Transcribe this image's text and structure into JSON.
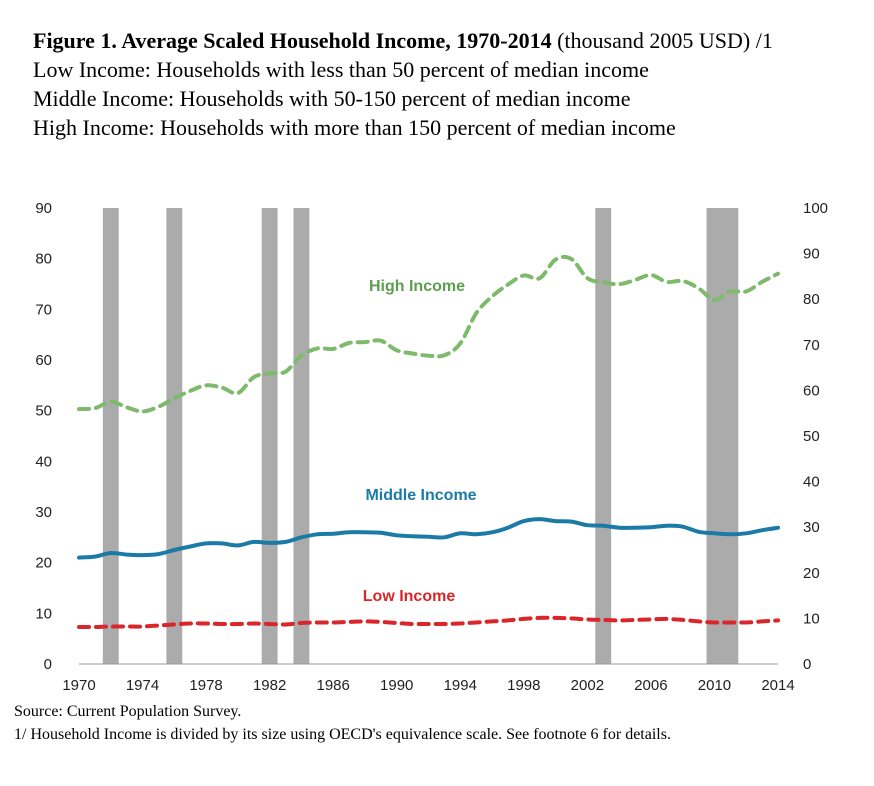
{
  "header": {
    "title_bold": "Figure 1. Average Scaled Household Income, 1970-2014",
    "title_rest": " (thousand 2005 USD) /1",
    "lines": [
      "Low Income: Households with less than 50 percent of median income",
      "Middle Income: Households with 50-150 percent of median income",
      "High Income: Households with more than 150 percent of median income"
    ]
  },
  "footer": {
    "source": "Source: Current Population Survey.",
    "note": "1/ Household Income is divided by its size using OECD's equivalence scale. See footnote 6 for details."
  },
  "chart_data": {
    "type": "line",
    "x_ticks": [
      "1970",
      "1974",
      "1978",
      "1982",
      "1986",
      "1990",
      "1994",
      "1998",
      "2002",
      "2006",
      "2010",
      "2014"
    ],
    "xlim": [
      1970,
      2014
    ],
    "ylim_left": [
      0,
      90
    ],
    "yticks_left": [
      "0",
      "10",
      "20",
      "30",
      "40",
      "50",
      "60",
      "70",
      "80",
      "90"
    ],
    "ylim_right": [
      0,
      100
    ],
    "yticks_right": [
      "0",
      "10",
      "20",
      "30",
      "40",
      "50",
      "60",
      "70",
      "80",
      "90",
      "100"
    ],
    "recession_bands": [
      [
        1971.5,
        1972.5
      ],
      [
        1975.5,
        1976.5
      ],
      [
        1981.5,
        1982.5
      ],
      [
        1983.5,
        1984.5
      ],
      [
        2002.5,
        2003.5
      ],
      [
        2009.5,
        2011.5
      ]
    ],
    "series": [
      {
        "name": "High Income",
        "axis": "right",
        "style": "dashed",
        "color": "#7dba6c",
        "label_color": "#5d9e4f",
        "x": [
          1970,
          1971,
          1972,
          1973,
          1974,
          1975,
          1976,
          1977,
          1978,
          1979,
          1980,
          1981,
          1982,
          1983,
          1984,
          1985,
          1986,
          1987,
          1988,
          1989,
          1990,
          1991,
          1992,
          1993,
          1994,
          1995,
          1996,
          1997,
          1998,
          1999,
          2000,
          2001,
          2002,
          2003,
          2004,
          2005,
          2006,
          2007,
          2008,
          2009,
          2010,
          2011,
          2012,
          2013,
          2014
        ],
        "values": [
          55.9,
          56.1,
          57.5,
          56.3,
          55.4,
          56.4,
          58.3,
          59.9,
          61.1,
          60.6,
          59.4,
          62.9,
          63.7,
          64.1,
          67.6,
          69.2,
          69.1,
          70.4,
          70.6,
          70.9,
          68.8,
          68.1,
          67.6,
          67.7,
          70.3,
          76.9,
          80.6,
          83.2,
          85.2,
          84.6,
          88.7,
          88.8,
          84.6,
          83.7,
          83.3,
          84.2,
          85.3,
          83.8,
          84.0,
          82.4,
          79.8,
          81.7,
          81.7,
          83.8,
          85.6
        ]
      },
      {
        "name": "Middle Income",
        "axis": "left",
        "style": "solid",
        "color": "#1b7ba6",
        "label_color": "#1b7ba6",
        "x": [
          1970,
          1971,
          1972,
          1973,
          1974,
          1975,
          1976,
          1977,
          1978,
          1979,
          1980,
          1981,
          1982,
          1983,
          1984,
          1985,
          1986,
          1987,
          1988,
          1989,
          1990,
          1991,
          1992,
          1993,
          1994,
          1995,
          1996,
          1997,
          1998,
          1999,
          2000,
          2001,
          2002,
          2003,
          2004,
          2005,
          2006,
          2007,
          2008,
          2009,
          2010,
          2011,
          2012,
          2013,
          2014
        ],
        "values": [
          21.0,
          21.2,
          21.9,
          21.6,
          21.5,
          21.7,
          22.5,
          23.2,
          23.8,
          23.8,
          23.4,
          24.1,
          23.9,
          24.1,
          25.0,
          25.6,
          25.7,
          26.0,
          26.0,
          25.9,
          25.4,
          25.2,
          25.1,
          25.0,
          25.8,
          25.6,
          26.0,
          26.9,
          28.2,
          28.6,
          28.2,
          28.1,
          27.4,
          27.3,
          26.9,
          26.9,
          27.0,
          27.3,
          27.1,
          26.1,
          25.8,
          25.6,
          25.8,
          26.4,
          26.9
        ]
      },
      {
        "name": "Low Income",
        "axis": "left",
        "style": "dashed",
        "color": "#d9262b",
        "label_color": "#d9262b",
        "x": [
          1970,
          1971,
          1972,
          1973,
          1974,
          1975,
          1976,
          1977,
          1978,
          1979,
          1980,
          1981,
          1982,
          1983,
          1984,
          1985,
          1986,
          1987,
          1988,
          1989,
          1990,
          1991,
          1992,
          1993,
          1994,
          1995,
          1996,
          1997,
          1998,
          1999,
          2000,
          2001,
          2002,
          2003,
          2004,
          2005,
          2006,
          2007,
          2008,
          2009,
          2010,
          2011,
          2012,
          2013,
          2014
        ],
        "values": [
          7.3,
          7.3,
          7.4,
          7.4,
          7.4,
          7.6,
          7.8,
          8.0,
          8.0,
          7.9,
          7.9,
          8.0,
          7.9,
          7.8,
          8.1,
          8.2,
          8.2,
          8.3,
          8.4,
          8.3,
          8.1,
          7.9,
          7.9,
          7.9,
          8.0,
          8.2,
          8.4,
          8.6,
          8.9,
          9.1,
          9.1,
          9.0,
          8.8,
          8.7,
          8.6,
          8.7,
          8.8,
          8.9,
          8.7,
          8.4,
          8.2,
          8.2,
          8.2,
          8.4,
          8.6
        ]
      }
    ]
  }
}
